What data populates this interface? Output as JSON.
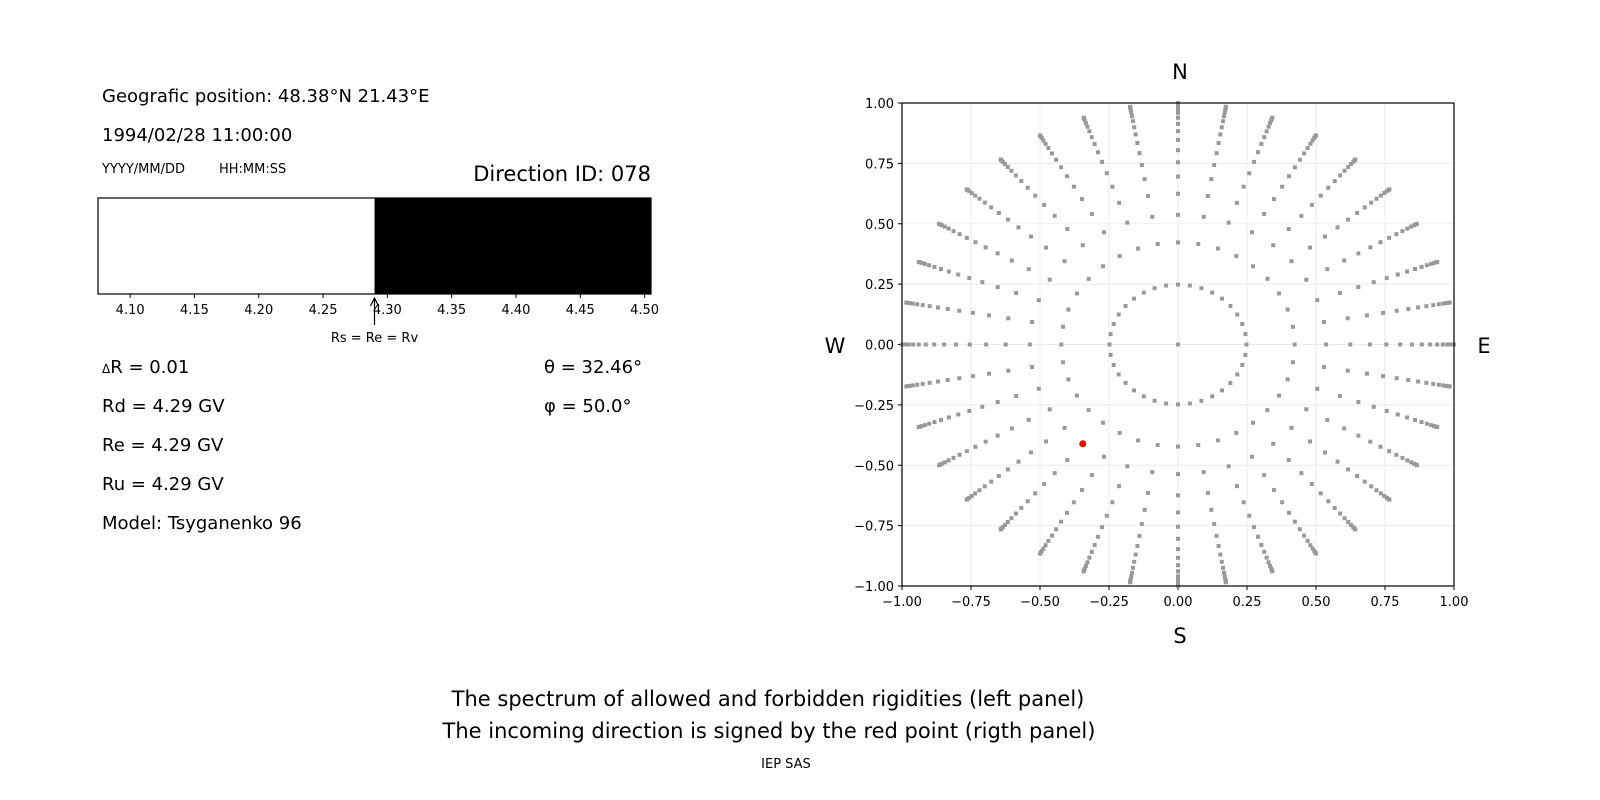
{
  "left_panel": {
    "position": "Geografic position: 48.38°N 21.43°E",
    "datetime": "1994/02/28 11:00:00",
    "date_format": "YYYY/MM/DD",
    "time_format": "HH:MM:SS",
    "direction_id": "Direction ID: 078",
    "delta_r": "R = 0.01",
    "delta_symbol": "Δ",
    "rd": "Rd = 4.29 GV",
    "re": "Re = 4.29 GV",
    "ru": "Ru = 4.29 GV",
    "model": "Model: Tsyganenko 96",
    "theta": "θ = 32.46°",
    "phi": "φ = 50.0°"
  },
  "footer": {
    "line1": "The spectrum of allowed and forbidden rigidities (left panel)",
    "line2": "The incoming direction is signed by the red point (rigth panel)",
    "credit": "IEP SAS"
  },
  "chart_data": [
    {
      "type": "bar",
      "title": "",
      "xlim": [
        4.075,
        4.505
      ],
      "xticks": [
        "4.10",
        "4.15",
        "4.20",
        "4.25",
        "4.30",
        "4.35",
        "4.40",
        "4.45",
        "4.50"
      ],
      "segments": [
        {
          "from": 4.075,
          "to": 4.29,
          "state": "allowed",
          "color": "#ffffff"
        },
        {
          "from": 4.29,
          "to": 4.505,
          "state": "forbidden",
          "color": "#000000"
        }
      ],
      "annotation": {
        "x": 4.29,
        "text": "Rs = Re = Rv"
      }
    },
    {
      "type": "scatter",
      "xlim": [
        -1,
        1
      ],
      "ylim": [
        -1,
        1
      ],
      "xticks": [
        "−1.00",
        "−0.75",
        "−0.50",
        "−0.25",
        "0.00",
        "0.25",
        "0.50",
        "0.75",
        "1.00"
      ],
      "yticks": [
        "−1.00",
        "−0.75",
        "−0.50",
        "−0.25",
        "0.00",
        "0.25",
        "0.50",
        "0.75",
        "1.00"
      ],
      "grid": true,
      "compass": {
        "north": "N",
        "south": "S",
        "west": "W",
        "east": "E"
      },
      "direction_grid": {
        "rings": 16,
        "azimuth_step_deg": 10,
        "center_point": true,
        "color": "#999999"
      },
      "highlight": {
        "x": -0.345,
        "y": -0.411,
        "theta_deg": 32.46,
        "color": "#ff0000"
      }
    }
  ]
}
